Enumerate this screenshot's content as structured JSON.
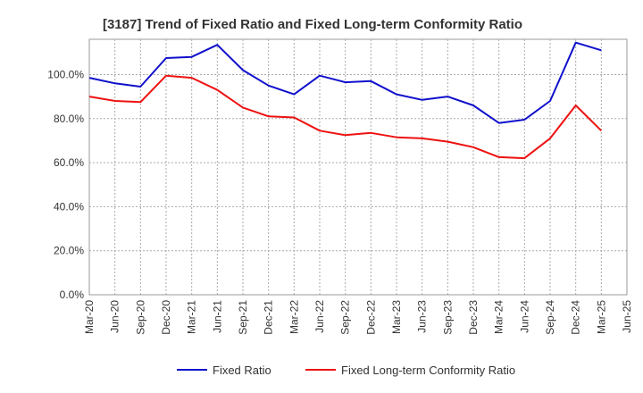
{
  "chart_data": {
    "type": "line",
    "title": "[3187]  Trend of Fixed Ratio and Fixed Long-term Conformity Ratio",
    "xlabel": "",
    "ylabel": "",
    "categories": [
      "Mar-20",
      "Jun-20",
      "Sep-20",
      "Dec-20",
      "Mar-21",
      "Jun-21",
      "Sep-21",
      "Dec-21",
      "Mar-22",
      "Jun-22",
      "Sep-22",
      "Dec-22",
      "Mar-23",
      "Jun-23",
      "Sep-23",
      "Dec-23",
      "Mar-24",
      "Jun-24",
      "Sep-24",
      "Dec-24",
      "Mar-25",
      "Jun-25"
    ],
    "y_ticks": [
      "0.0%",
      "20.0%",
      "40.0%",
      "60.0%",
      "80.0%",
      "100.0%"
    ],
    "ylim": [
      0,
      116
    ],
    "grid": true,
    "legend_position": "bottom",
    "series": [
      {
        "name": "Fixed Ratio",
        "color": "#1010cc",
        "values": [
          98.5,
          96.0,
          94.5,
          107.5,
          108.0,
          113.5,
          102.0,
          95.0,
          91.0,
          99.5,
          96.5,
          97.0,
          91.0,
          88.5,
          90.0,
          86.0,
          78.0,
          79.5,
          88.0,
          114.5,
          111.0,
          null
        ]
      },
      {
        "name": "Fixed Long-term Conformity Ratio",
        "color": "#ee1111",
        "values": [
          90.0,
          88.0,
          87.5,
          99.5,
          98.5,
          93.0,
          85.0,
          81.0,
          80.5,
          74.5,
          72.5,
          73.5,
          71.5,
          71.0,
          69.5,
          67.0,
          62.5,
          62.0,
          71.0,
          86.0,
          74.5,
          null
        ]
      }
    ]
  }
}
